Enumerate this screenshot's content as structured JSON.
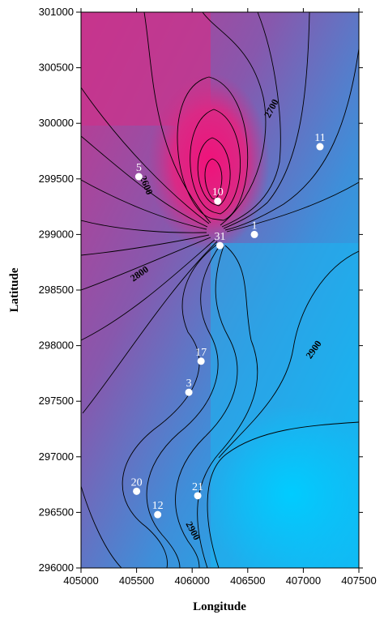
{
  "chart_data": {
    "type": "contour",
    "xlabel": "Longitude",
    "ylabel": "Latitude",
    "xlim": [
      405000,
      407500
    ],
    "ylim": [
      296000,
      301000
    ],
    "x_ticks": [
      405000,
      405500,
      406000,
      406500,
      407000,
      407500
    ],
    "y_ticks": [
      296000,
      296500,
      297000,
      297500,
      298000,
      298500,
      299000,
      299500,
      300000,
      300500,
      301000
    ],
    "colors": {
      "low": "#f0127a",
      "mid": "#7d62b8",
      "high": "#00c8ff"
    },
    "contour_labels": [
      {
        "text": "2700",
        "x": 406720,
        "y": 300130
      },
      {
        "text": "2800",
        "x": 405530,
        "y": 298640
      },
      {
        "text": "2900",
        "x": 407100,
        "y": 297960
      },
      {
        "text": "2900",
        "x": 406000,
        "y": 296330
      },
      {
        "text": "2600",
        "x": 405580,
        "y": 299440
      }
    ],
    "wells": [
      {
        "id": "1",
        "x": 406560,
        "y": 299000
      },
      {
        "id": "3",
        "x": 405970,
        "y": 297580
      },
      {
        "id": "5",
        "x": 405520,
        "y": 299520
      },
      {
        "id": "10",
        "x": 406230,
        "y": 299300
      },
      {
        "id": "11",
        "x": 407150,
        "y": 299790
      },
      {
        "id": "12",
        "x": 405690,
        "y": 296480
      },
      {
        "id": "17",
        "x": 406080,
        "y": 297860
      },
      {
        "id": "20",
        "x": 405500,
        "y": 296690
      },
      {
        "id": "21",
        "x": 406050,
        "y": 296650
      },
      {
        "id": "31",
        "x": 406250,
        "y": 298900
      }
    ]
  }
}
